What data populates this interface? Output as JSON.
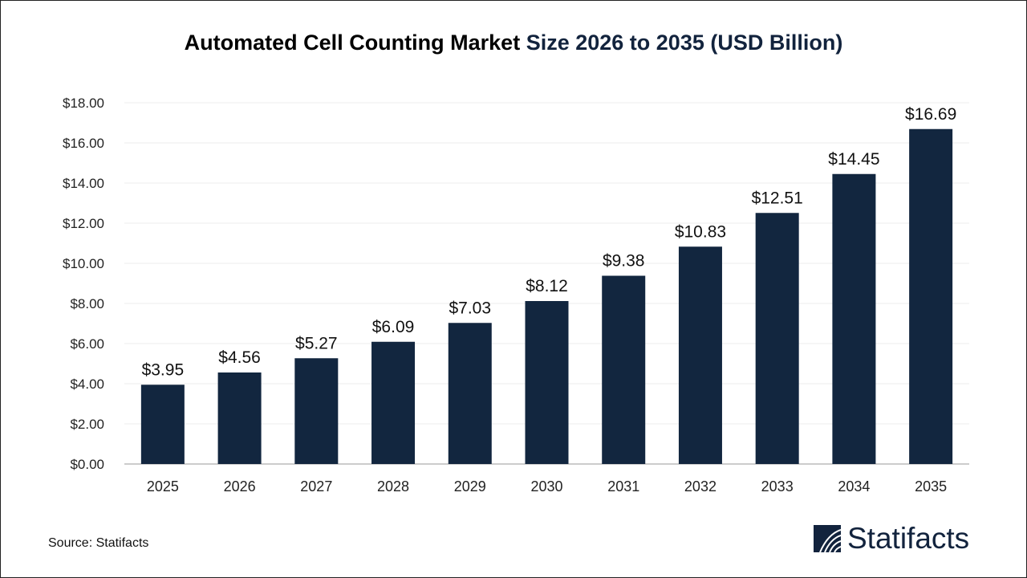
{
  "chart_data": {
    "type": "bar",
    "title": "Automated Cell Counting Market Size 2026 to 2035 (USD Billion)",
    "title_part1": "Automated Cell Counting Market",
    "title_part2": "Size 2026 to 2035 (USD Billion)",
    "categories": [
      "2025",
      "2026",
      "2027",
      "2028",
      "2029",
      "2030",
      "2031",
      "2032",
      "2033",
      "2034",
      "2035"
    ],
    "values": [
      3.95,
      4.56,
      5.27,
      6.09,
      7.03,
      8.12,
      9.38,
      10.83,
      12.51,
      14.45,
      16.69
    ],
    "data_labels": [
      "$3.95",
      "$4.56",
      "$5.27",
      "$6.09",
      "$7.03",
      "$8.12",
      "$9.38",
      "$10.83",
      "$12.51",
      "$14.45",
      "$16.69"
    ],
    "ylim": [
      0,
      18
    ],
    "yticks": [
      0,
      2,
      4,
      6,
      8,
      10,
      12,
      14,
      16,
      18
    ],
    "ytick_labels": [
      "$0.00",
      "$2.00",
      "$4.00",
      "$6.00",
      "$8.00",
      "$10.00",
      "$12.00",
      "$14.00",
      "$16.00",
      "$18.00"
    ],
    "xlabel": "",
    "ylabel": "",
    "grid": true,
    "bar_color": "#12263f"
  },
  "footer": {
    "source": "Source: Statifacts",
    "logo_text": "Statifacts"
  }
}
